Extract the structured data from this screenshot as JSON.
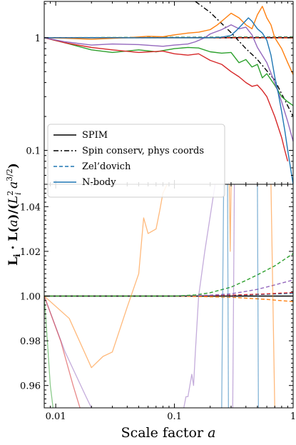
{
  "chart_data": [
    {
      "panel": "top",
      "type": "line",
      "x_scale": "log",
      "y_scale": "log",
      "xlim": [
        0.008,
        1.0
      ],
      "ylim": [
        0.05,
        2.1
      ],
      "ytick_labels": [
        {
          "v": 1,
          "t": "1"
        },
        {
          "v": 0.1,
          "t": "0.1"
        }
      ],
      "legend": {
        "placement": "lower-left",
        "entries": [
          {
            "label": "SPIM",
            "style": "solid",
            "color": "#000000"
          },
          {
            "label": "Spin conserv, phys coords",
            "style": "dashdot",
            "color": "#000000"
          },
          {
            "label": "Zel’dovich",
            "style": "dashed",
            "color": "#1f77b4"
          },
          {
            "label": "N-body",
            "style": "solid",
            "color": "#1f77b4"
          }
        ]
      },
      "series": [
        {
          "color": "#000000",
          "style": "solid",
          "width": 1.6,
          "x": [
            0.008,
            1.0
          ],
          "y": [
            1.0,
            1.0
          ]
        },
        {
          "color": "#000000",
          "style": "dashdot",
          "width": 1.4,
          "x": [
            0.15,
            0.2,
            0.3,
            0.4,
            0.5,
            0.7,
            1.0
          ],
          "y": [
            2.1,
            1.68,
            1.11,
            0.8,
            0.64,
            0.42,
            0.2
          ]
        },
        {
          "color": "#1f77b4",
          "style": "dashed",
          "width": 1.4,
          "x": [
            0.008,
            1.0
          ],
          "y": [
            1.0,
            1.001
          ]
        },
        {
          "color": "#ff7f0e",
          "style": "dashed",
          "width": 1.4,
          "x": [
            0.008,
            1.0
          ],
          "y": [
            1.0,
            0.998
          ]
        },
        {
          "color": "#2ca02c",
          "style": "dashed",
          "width": 1.4,
          "x": [
            0.008,
            1.0
          ],
          "y": [
            1.0,
            1.02
          ]
        },
        {
          "color": "#9467bd",
          "style": "dashed",
          "width": 1.4,
          "x": [
            0.008,
            1.0
          ],
          "y": [
            1.0,
            1.007
          ]
        },
        {
          "color": "#d62728",
          "style": "dashed",
          "width": 1.4,
          "x": [
            0.008,
            1.0
          ],
          "y": [
            1.0,
            1.002
          ]
        },
        {
          "color": "#ff7f0e",
          "style": "solid",
          "width": 1.4,
          "x": [
            0.008,
            0.012,
            0.02,
            0.04,
            0.06,
            0.08,
            0.1,
            0.13,
            0.16,
            0.2,
            0.23,
            0.26,
            0.3,
            0.35,
            0.4,
            0.45,
            0.5,
            0.55,
            0.6,
            0.65,
            0.7,
            0.8,
            0.9,
            1.0
          ],
          "y": [
            1.0,
            0.99,
            0.97,
            1.0,
            1.03,
            1.02,
            1.06,
            1.1,
            1.12,
            1.18,
            1.3,
            1.45,
            1.65,
            1.5,
            1.3,
            1.2,
            1.6,
            1.9,
            1.5,
            1.3,
            1.0,
            0.8,
            0.6,
            0.47
          ]
        },
        {
          "color": "#2ca02c",
          "style": "solid",
          "width": 1.4,
          "x": [
            0.008,
            0.012,
            0.02,
            0.03,
            0.05,
            0.07,
            0.1,
            0.13,
            0.16,
            0.2,
            0.25,
            0.3,
            0.35,
            0.4,
            0.45,
            0.5,
            0.55,
            0.6,
            0.7,
            0.8,
            0.9,
            1.0
          ],
          "y": [
            1.0,
            0.9,
            0.78,
            0.74,
            0.78,
            0.75,
            0.8,
            0.82,
            0.81,
            0.75,
            0.73,
            0.74,
            0.6,
            0.64,
            0.55,
            0.58,
            0.44,
            0.48,
            0.38,
            0.3,
            0.27,
            0.25
          ]
        },
        {
          "color": "#d62728",
          "style": "solid",
          "width": 1.4,
          "x": [
            0.008,
            0.012,
            0.02,
            0.03,
            0.05,
            0.08,
            0.1,
            0.13,
            0.16,
            0.2,
            0.25,
            0.3,
            0.35,
            0.4,
            0.45,
            0.5,
            0.55,
            0.6,
            0.7,
            0.8,
            0.85,
            0.9
          ],
          "y": [
            1.0,
            0.9,
            0.82,
            0.78,
            0.74,
            0.76,
            0.72,
            0.7,
            0.72,
            0.63,
            0.58,
            0.5,
            0.45,
            0.4,
            0.37,
            0.38,
            0.34,
            0.3,
            0.2,
            0.13,
            0.1,
            0.08
          ]
        },
        {
          "color": "#9467bd",
          "style": "solid",
          "width": 1.4,
          "x": [
            0.008,
            0.012,
            0.02,
            0.03,
            0.05,
            0.08,
            0.1,
            0.13,
            0.15,
            0.18,
            0.2,
            0.25,
            0.3,
            0.35,
            0.4,
            0.45,
            0.5,
            0.6,
            0.7,
            0.8,
            0.9,
            1.0
          ],
          "y": [
            1.0,
            0.92,
            0.86,
            0.88,
            0.87,
            0.84,
            0.86,
            0.88,
            0.92,
            1.0,
            1.08,
            1.18,
            1.3,
            1.2,
            1.24,
            1.06,
            0.82,
            0.6,
            0.4,
            0.27,
            0.18,
            0.12
          ]
        },
        {
          "color": "#1f77b4",
          "style": "solid",
          "width": 1.4,
          "x": [
            0.008,
            0.015,
            0.03,
            0.05,
            0.1,
            0.15,
            0.2,
            0.25,
            0.3,
            0.33,
            0.37,
            0.42,
            0.45,
            0.5,
            0.55,
            0.6,
            0.65,
            0.7,
            0.75,
            0.8,
            0.85,
            0.9,
            0.95,
            1.0
          ],
          "y": [
            1.0,
            1.0,
            1.0,
            1.0,
            1.0,
            1.0,
            1.0,
            1.01,
            1.05,
            1.15,
            1.3,
            1.5,
            1.4,
            1.2,
            1.1,
            0.95,
            0.7,
            0.45,
            0.32,
            0.22,
            0.15,
            0.1,
            0.07,
            0.05
          ]
        }
      ]
    },
    {
      "panel": "bottom",
      "type": "line",
      "x_scale": "log",
      "xlim": [
        0.008,
        1.0
      ],
      "ylim": [
        0.95,
        1.05
      ],
      "xlabel": "Scale factor a",
      "ylabel": "L_i · L(a)/(L_i^2 a^{3/2})",
      "xtick_labels": [
        {
          "v": 0.01,
          "t": "0.01"
        },
        {
          "v": 0.1,
          "t": "0.1"
        },
        {
          "v": 1,
          "t": "1"
        }
      ],
      "ytick_labels": [
        {
          "v": 0.96,
          "t": "0.96"
        },
        {
          "v": 0.98,
          "t": "0.98"
        },
        {
          "v": 1.0,
          "t": "1.00"
        },
        {
          "v": 1.02,
          "t": "1.02"
        },
        {
          "v": 1.04,
          "t": "1.04"
        }
      ],
      "series": [
        {
          "color": "#000000",
          "style": "solid",
          "width": 1.6,
          "x": [
            0.008,
            1.0
          ],
          "y": [
            1.0,
            1.0
          ]
        },
        {
          "color": "#1f77b4",
          "style": "dashed",
          "width": 1.4,
          "x": [
            0.008,
            0.1,
            0.3,
            0.6,
            1.0
          ],
          "y": [
            1.0,
            1.0,
            1.0003,
            1.0008,
            1.0012
          ]
        },
        {
          "color": "#d62728",
          "style": "dashed",
          "width": 1.4,
          "x": [
            0.008,
            0.1,
            0.3,
            0.6,
            1.0
          ],
          "y": [
            1.0,
            1.0,
            1.0004,
            1.001,
            1.0016
          ]
        },
        {
          "color": "#ff7f0e",
          "style": "dashed",
          "width": 1.4,
          "x": [
            0.008,
            0.1,
            0.3,
            0.6,
            1.0
          ],
          "y": [
            1.0,
            1.0,
            0.9995,
            0.9985,
            0.9975
          ]
        },
        {
          "color": "#9467bd",
          "style": "dashed",
          "width": 1.4,
          "x": [
            0.008,
            0.1,
            0.2,
            0.3,
            0.5,
            0.7,
            1.0
          ],
          "y": [
            1.0,
            1.0,
            1.0004,
            1.001,
            1.003,
            1.005,
            1.0072
          ]
        },
        {
          "color": "#2ca02c",
          "style": "dashed",
          "width": 1.4,
          "x": [
            0.008,
            0.1,
            0.15,
            0.2,
            0.3,
            0.4,
            0.5,
            0.7,
            1.0
          ],
          "y": [
            1.0,
            1.0,
            1.0005,
            1.0015,
            1.004,
            1.007,
            1.0095,
            1.0135,
            1.019
          ]
        },
        {
          "color": "#ff7f0e",
          "style": "solid",
          "width": 1.3,
          "opacity": 0.55,
          "x": [
            0.008,
            0.013,
            0.02,
            0.025,
            0.03,
            0.04,
            0.05,
            0.055,
            0.06,
            0.07,
            0.075,
            0.08,
            0.085,
            0.087
          ],
          "y": [
            1.0,
            0.99,
            0.968,
            0.973,
            0.975,
            0.995,
            1.01,
            1.035,
            1.028,
            1.03,
            1.038,
            1.046,
            1.049,
            1.05
          ]
        },
        {
          "color": "#ff7f0e",
          "style": "solid",
          "width": 1.3,
          "opacity": 0.55,
          "x": [
            0.29,
            0.295,
            0.3
          ],
          "y": [
            1.05,
            1.02,
            1.05
          ]
        },
        {
          "color": "#ff7f0e",
          "style": "solid",
          "width": 1.3,
          "opacity": 0.55,
          "x": [
            0.65,
            0.7
          ],
          "y": [
            1.05,
            0.95
          ]
        },
        {
          "color": "#9467bd",
          "style": "solid",
          "width": 1.3,
          "opacity": 0.55,
          "x": [
            0.008,
            0.012,
            0.018,
            0.02
          ],
          "y": [
            1.0,
            0.975,
            0.955,
            0.95
          ]
        },
        {
          "color": "#9467bd",
          "style": "solid",
          "width": 1.3,
          "opacity": 0.55,
          "x": [
            0.12,
            0.125,
            0.13,
            0.14,
            0.145,
            0.15,
            0.16,
            0.18,
            0.22
          ],
          "y": [
            0.95,
            0.955,
            0.955,
            0.965,
            0.96,
            0.975,
            1.0,
            1.02,
            1.05
          ]
        },
        {
          "color": "#9467bd",
          "style": "solid",
          "width": 1.3,
          "opacity": 0.55,
          "x": [
            0.31,
            0.32
          ],
          "y": [
            0.95,
            1.05
          ]
        },
        {
          "color": "#d62728",
          "style": "solid",
          "width": 1.3,
          "opacity": 0.55,
          "x": [
            0.008,
            0.011,
            0.014,
            0.016
          ],
          "y": [
            1.0,
            0.98,
            0.96,
            0.95
          ]
        },
        {
          "color": "#2ca02c",
          "style": "solid",
          "width": 1.3,
          "opacity": 0.55,
          "x": [
            0.008,
            0.0085,
            0.009,
            0.0095
          ],
          "y": [
            1.0,
            0.98,
            0.96,
            0.95
          ]
        },
        {
          "color": "#1f77b4",
          "style": "solid",
          "width": 1.3,
          "opacity": 0.55,
          "x": [
            0.25,
            0.255,
            0.26
          ],
          "y": [
            0.95,
            1.0,
            1.05
          ]
        },
        {
          "color": "#1f77b4",
          "style": "solid",
          "width": 1.3,
          "opacity": 0.55,
          "x": [
            0.28,
            0.285
          ],
          "y": [
            1.05,
            0.95
          ]
        },
        {
          "color": "#1f77b4",
          "style": "solid",
          "width": 1.3,
          "opacity": 0.55,
          "x": [
            0.5,
            0.51
          ],
          "y": [
            1.05,
            0.95
          ]
        }
      ]
    }
  ]
}
